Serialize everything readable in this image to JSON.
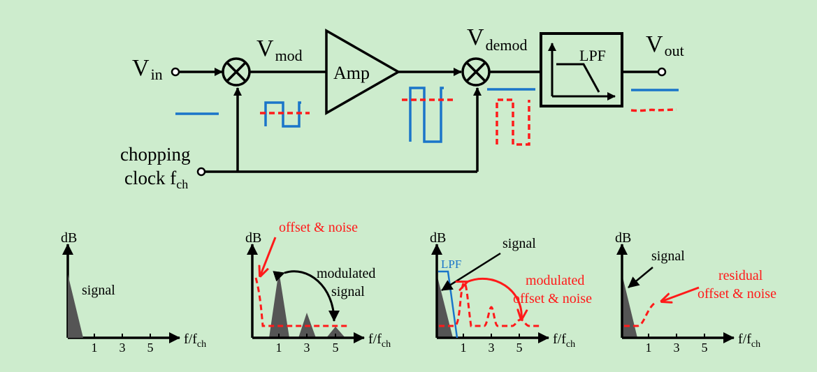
{
  "colors": {
    "background": "#cdeccd",
    "wire": "#000000",
    "signal": "#1a75c9",
    "offset_noise": "#ff1a1a",
    "spectrum_fill": "#555555"
  },
  "block": {
    "vin": {
      "main": "V",
      "sub": "in"
    },
    "vmod": {
      "main": "V",
      "sub": "mod"
    },
    "amp": "Amp",
    "vdemod": {
      "main": "V",
      "sub": "demod"
    },
    "lpf": "LPF",
    "vout": {
      "main": "V",
      "sub": "out"
    },
    "clock_line1": "chopping",
    "clock_line2": {
      "main": "clock f",
      "sub": "ch"
    }
  },
  "spectra": {
    "ylabel": "dB",
    "xlabel": {
      "main": "f/f",
      "sub": "ch"
    },
    "ticks": [
      "1",
      "3",
      "5"
    ],
    "panel1": {
      "signal": "signal"
    },
    "panel2": {
      "offset_noise": "offset & noise",
      "modulated_1": "modulated",
      "modulated_2": "signal"
    },
    "panel3": {
      "signal": "signal",
      "lpf": "LPF",
      "modulated_1": "modulated",
      "modulated_2": "offset & noise"
    },
    "panel4": {
      "signal": "signal",
      "residual_1": "residual",
      "residual_2": "offset & noise"
    }
  }
}
